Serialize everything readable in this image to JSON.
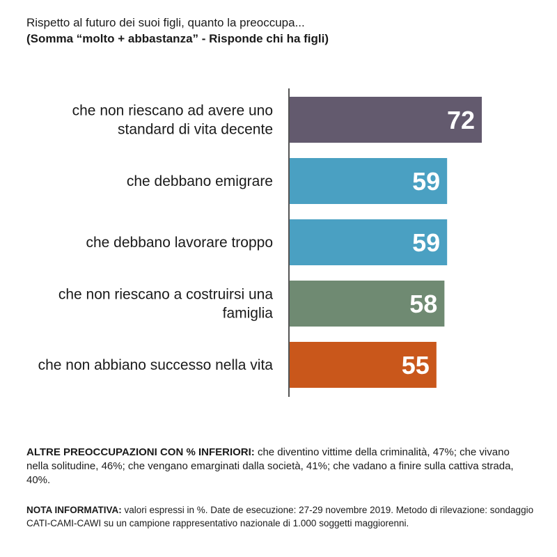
{
  "header": {
    "title": "Rispetto al futuro dei suoi figli, quanto la preoccupa...",
    "subtitle": "(Somma “molto + abbastanza” - Risponde chi ha figli)"
  },
  "chart_data": {
    "type": "bar",
    "orientation": "horizontal",
    "categories": [
      [
        "che non riescano ad avere uno",
        "standard di vita decente"
      ],
      [
        "che debbano emigrare"
      ],
      [
        "che debbano lavorare troppo"
      ],
      [
        "che non riescano a costruirsi una",
        "famiglia"
      ],
      [
        "che non abbiano successo nella vita"
      ]
    ],
    "values": [
      72,
      59,
      59,
      58,
      55
    ],
    "colors": [
      "#635a6e",
      "#4aa0c2",
      "#4aa0c2",
      "#6f8a72",
      "#c9571b"
    ],
    "xlim": [
      0,
      100
    ],
    "grid": false
  },
  "footer": {
    "other_label": "ALTRE PREOCCUPAZIONI CON % INFERIORI:",
    "other_text": " che diventino vittime della criminalità, 47%; che vivano nella solitudine, 46%; che vengano emarginati dalla società, 41%; che vadano a finire sulla cattiva strada, 40%.",
    "note_label": "NOTA INFORMATIVA:",
    "note_text": " valori espressi in %. Date de esecuzione: 27-29 novembre 2019. Metodo di rilevazione: sondaggio CATI-CAMI-CAWI su un campione rappresentativo nazionale di 1.000 soggetti maggiorenni."
  }
}
